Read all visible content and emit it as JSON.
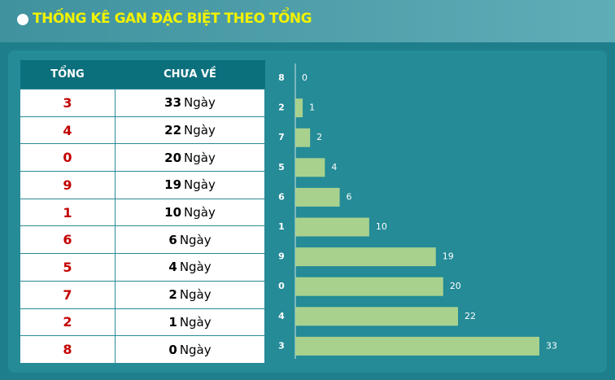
{
  "header": {
    "title": "THỐNG KÊ GAN ĐẶC BIỆT THEO TỔNG"
  },
  "table": {
    "columns": [
      "TỔNG",
      "CHƯA VỀ"
    ],
    "unit": "Ngày",
    "rows": [
      [
        "3",
        "33"
      ],
      [
        "4",
        "22"
      ],
      [
        "0",
        "20"
      ],
      [
        "9",
        "19"
      ],
      [
        "1",
        "10"
      ],
      [
        "6",
        "6"
      ],
      [
        "5",
        "4"
      ],
      [
        "7",
        "2"
      ],
      [
        "2",
        "1"
      ],
      [
        "8",
        "0"
      ]
    ]
  },
  "chart_data": {
    "type": "bar",
    "orientation": "horizontal",
    "categories": [
      "8",
      "2",
      "7",
      "5",
      "6",
      "1",
      "9",
      "0",
      "4",
      "3"
    ],
    "values": [
      0,
      1,
      2,
      4,
      6,
      10,
      19,
      20,
      22,
      33
    ],
    "color": "#a9d18e",
    "xlim": [
      0,
      33
    ]
  }
}
